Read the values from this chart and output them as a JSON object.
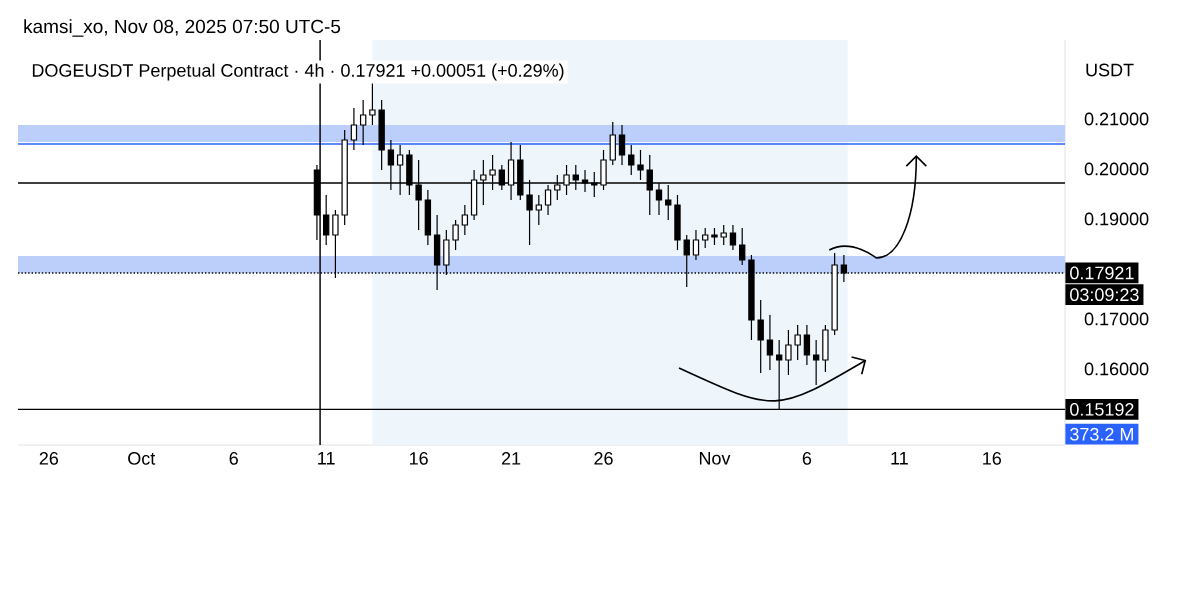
{
  "chart_data": {
    "type": "candlestick",
    "title": "DOGEUSDT Perpetual Contract · 4h · 0.17921 +0.00051 (+0.29%)",
    "ylabel": "USDT",
    "annotations": [
      "kamsi_xo, Nov 08, 2025 07:50 UTC-5",
      "03:09:23",
      "373.2 M"
    ],
    "color": "#000000",
    "x": [
      "2025-10-10T12:00",
      "2025-10-11T00:00",
      "2025-10-11T12:00",
      "2025-10-12T00:00",
      "2025-10-12T12:00",
      "2025-10-13T00:00",
      "2025-10-13T12:00",
      "2025-10-14T00:00",
      "2025-10-14T12:00",
      "2025-10-15T00:00",
      "2025-10-15T12:00",
      "2025-10-16T00:00",
      "2025-10-16T12:00",
      "2025-10-17T00:00",
      "2025-10-17T12:00",
      "2025-10-18T00:00",
      "2025-10-18T12:00",
      "2025-10-19T00:00",
      "2025-10-19T12:00",
      "2025-10-20T00:00",
      "2025-10-20T12:00",
      "2025-10-21T00:00",
      "2025-10-21T12:00",
      "2025-10-22T00:00",
      "2025-10-22T12:00",
      "2025-10-23T00:00",
      "2025-10-23T12:00",
      "2025-10-24T00:00",
      "2025-10-24T12:00",
      "2025-10-25T00:00",
      "2025-10-25T12:00",
      "2025-10-26T00:00",
      "2025-10-26T12:00",
      "2025-10-27T00:00",
      "2025-10-27T12:00",
      "2025-10-28T00:00",
      "2025-10-28T12:00",
      "2025-10-29T00:00",
      "2025-10-29T12:00",
      "2025-10-30T00:00",
      "2025-10-30T12:00",
      "2025-10-31T00:00",
      "2025-10-31T12:00",
      "2025-11-01T00:00",
      "2025-11-01T12:00",
      "2025-11-02T00:00",
      "2025-11-02T12:00",
      "2025-11-03T00:00",
      "2025-11-03T12:00",
      "2025-11-04T00:00",
      "2025-11-04T12:00",
      "2025-11-05T00:00",
      "2025-11-05T12:00",
      "2025-11-06T00:00",
      "2025-11-06T12:00",
      "2025-11-07T00:00",
      "2025-11-07T12:00",
      "2025-11-08T00:00"
    ],
    "ohlc": [
      [
        0.1998,
        0.2008,
        0.1858,
        0.1908
      ],
      [
        0.1908,
        0.1948,
        0.1848,
        0.1868
      ],
      [
        0.1868,
        0.1918,
        0.1782,
        0.1908
      ],
      [
        0.1908,
        0.2078,
        0.1888,
        0.2058
      ],
      [
        0.2058,
        0.2122,
        0.2038,
        0.2088
      ],
      [
        0.2088,
        0.2138,
        0.2048,
        0.2108
      ],
      [
        0.2108,
        0.2172,
        0.2088,
        0.2118
      ],
      [
        0.2118,
        0.2138,
        0.1998,
        0.2038
      ],
      [
        0.2038,
        0.2058,
        0.1958,
        0.2008
      ],
      [
        0.2008,
        0.2048,
        0.1948,
        0.2028
      ],
      [
        0.2028,
        0.2038,
        0.1948,
        0.1968
      ],
      [
        0.1968,
        0.2018,
        0.1878,
        0.1938
      ],
      [
        0.1938,
        0.1958,
        0.1848,
        0.1868
      ],
      [
        0.1868,
        0.1908,
        0.1758,
        0.1808
      ],
      [
        0.1808,
        0.1878,
        0.1788,
        0.1858
      ],
      [
        0.1858,
        0.1898,
        0.1838,
        0.1888
      ],
      [
        0.1888,
        0.1928,
        0.1868,
        0.1908
      ],
      [
        0.1908,
        0.1998,
        0.1898,
        0.1978
      ],
      [
        0.1978,
        0.2018,
        0.1928,
        0.1988
      ],
      [
        0.1988,
        0.2028,
        0.1958,
        0.1998
      ],
      [
        0.1998,
        0.2008,
        0.1958,
        0.1968
      ],
      [
        0.1968,
        0.2054,
        0.1938,
        0.2018
      ],
      [
        0.2018,
        0.2048,
        0.1938,
        0.1948
      ],
      [
        0.1948,
        0.1978,
        0.1848,
        0.1918
      ],
      [
        0.1918,
        0.1948,
        0.1888,
        0.1928
      ],
      [
        0.1928,
        0.1968,
        0.1908,
        0.1958
      ],
      [
        0.1958,
        0.1988,
        0.1938,
        0.1968
      ],
      [
        0.1968,
        0.2008,
        0.1948,
        0.1988
      ],
      [
        0.1988,
        0.2008,
        0.1958,
        0.1978
      ],
      [
        0.1978,
        0.1998,
        0.1954,
        0.1972
      ],
      [
        0.1972,
        0.1994,
        0.1944,
        0.1968
      ],
      [
        0.1968,
        0.2038,
        0.1958,
        0.2018
      ],
      [
        0.2018,
        0.2094,
        0.2008,
        0.2068
      ],
      [
        0.2068,
        0.2088,
        0.2008,
        0.2028
      ],
      [
        0.2028,
        0.2048,
        0.1988,
        0.2008
      ],
      [
        0.2008,
        0.2038,
        0.1978,
        0.1998
      ],
      [
        0.1998,
        0.2028,
        0.1908,
        0.1958
      ],
      [
        0.1958,
        0.1972,
        0.1908,
        0.1938
      ],
      [
        0.1938,
        0.1968,
        0.1898,
        0.1928
      ],
      [
        0.1928,
        0.1948,
        0.1838,
        0.1858
      ],
      [
        0.1858,
        0.1868,
        0.1764,
        0.1828
      ],
      [
        0.1828,
        0.1878,
        0.1818,
        0.1858
      ],
      [
        0.1858,
        0.1882,
        0.1842,
        0.1868
      ],
      [
        0.1868,
        0.1882,
        0.1848,
        0.1864
      ],
      [
        0.1864,
        0.1888,
        0.1848,
        0.1872
      ],
      [
        0.1872,
        0.1888,
        0.1838,
        0.1848
      ],
      [
        0.1848,
        0.1882,
        0.1808,
        0.1818
      ],
      [
        0.1818,
        0.1828,
        0.1658,
        0.1698
      ],
      [
        0.1698,
        0.1738,
        0.1592,
        0.1658
      ],
      [
        0.1658,
        0.1708,
        0.1598,
        0.1628
      ],
      [
        0.1628,
        0.1658,
        0.1518,
        0.1618
      ],
      [
        0.1618,
        0.1678,
        0.1588,
        0.1648
      ],
      [
        0.1648,
        0.1688,
        0.1618,
        0.1668
      ],
      [
        0.1668,
        0.1688,
        0.1608,
        0.1628
      ],
      [
        0.1628,
        0.1658,
        0.1568,
        0.1618
      ],
      [
        0.1618,
        0.1688,
        0.1594,
        0.1678
      ],
      [
        0.1678,
        0.1832,
        0.1668,
        0.1808
      ],
      [
        0.1808,
        0.1828,
        0.1774,
        0.17921
      ]
    ],
    "xlim": [
      "2025-09-24T08:00",
      "2025-11-19T23:00"
    ],
    "ylim": [
      0.1448,
      0.2258
    ],
    "xticks": [
      {
        "value": "2025-09-26",
        "label": "26"
      },
      {
        "value": "2025-10-01",
        "label": "Oct"
      },
      {
        "value": "2025-10-06",
        "label": "6"
      },
      {
        "value": "2025-10-11",
        "label": "11"
      },
      {
        "value": "2025-10-16",
        "label": "16"
      },
      {
        "value": "2025-10-21",
        "label": "21"
      },
      {
        "value": "2025-10-26",
        "label": "26"
      },
      {
        "value": "2025-11-01",
        "label": "Nov"
      },
      {
        "value": "2025-11-06",
        "label": "6"
      },
      {
        "value": "2025-11-11",
        "label": "11"
      },
      {
        "value": "2025-11-16",
        "label": "16"
      }
    ],
    "yticks": [
      {
        "value": 0.16,
        "label": "0.16000"
      },
      {
        "value": 0.17,
        "label": "0.17000"
      },
      {
        "value": 0.19,
        "label": "0.19000"
      },
      {
        "value": 0.2,
        "label": "0.20000"
      },
      {
        "value": 0.21,
        "label": "0.21000"
      }
    ],
    "bands": [
      {
        "axis": "x",
        "from": "2025-10-13T12:00",
        "to": "2025-11-08T05:00",
        "color": "#eef6fc"
      },
      {
        "axis": "y",
        "from": 0.2054,
        "to": 0.2088,
        "color": "#bccefa"
      },
      {
        "axis": "y",
        "from": 0.1792,
        "to": 0.1826,
        "color": "#bccefa"
      }
    ],
    "ref_lines": [
      {
        "axis": "y",
        "value": 0.17921,
        "label": "0.17921",
        "line_style": "dotted",
        "color": "#000000"
      },
      {
        "axis": "y",
        "value": 0.15192,
        "label": "0.15192",
        "line_style": "solid",
        "color": "#000000"
      },
      {
        "axis": "y",
        "value": 0.205,
        "line_style": "solid",
        "color": "#2962ff"
      },
      {
        "axis": "y",
        "value": 0.1972,
        "line_style": "solid",
        "color": "#000000"
      },
      {
        "axis": "x",
        "value": "2025-10-10T16:00",
        "line_style": "solid",
        "color": "#000000"
      }
    ]
  }
}
